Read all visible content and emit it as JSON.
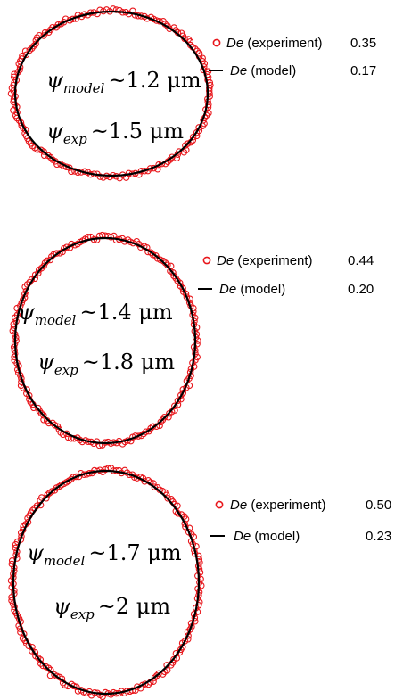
{
  "figure": {
    "panels": [
      {
        "psi_model": {
          "symbol": "ψ",
          "subscript": "model",
          "value": "~1.2 μm"
        },
        "psi_exp": {
          "symbol": "ψ",
          "subscript": "exp",
          "value": "~1.5 μm"
        },
        "legend": {
          "experiment": {
            "de": "De",
            "label": "(experiment)",
            "value": "0.35"
          },
          "model": {
            "de": "De",
            "label": "(model)",
            "value": "0.17"
          }
        }
      },
      {
        "psi_model": {
          "symbol": "ψ",
          "subscript": "model",
          "value": "~1.4 μm"
        },
        "psi_exp": {
          "symbol": "ψ",
          "subscript": "exp",
          "value": "~1.8 μm"
        },
        "legend": {
          "experiment": {
            "de": "De",
            "label": "(experiment)",
            "value": "0.44"
          },
          "model": {
            "de": "De",
            "label": "(model)",
            "value": "0.20"
          }
        }
      },
      {
        "psi_model": {
          "symbol": "ψ",
          "subscript": "model",
          "value": "~1.7 μm"
        },
        "psi_exp": {
          "symbol": "ψ",
          "subscript": "exp",
          "value": "~2 μm"
        },
        "legend": {
          "experiment": {
            "de": "De",
            "label": "(experiment)",
            "value": "0.50"
          },
          "model": {
            "de": "De",
            "label": "(model)",
            "value": "0.23"
          }
        }
      }
    ],
    "colors": {
      "experiment": "#e8161b",
      "model": "#000000"
    }
  }
}
